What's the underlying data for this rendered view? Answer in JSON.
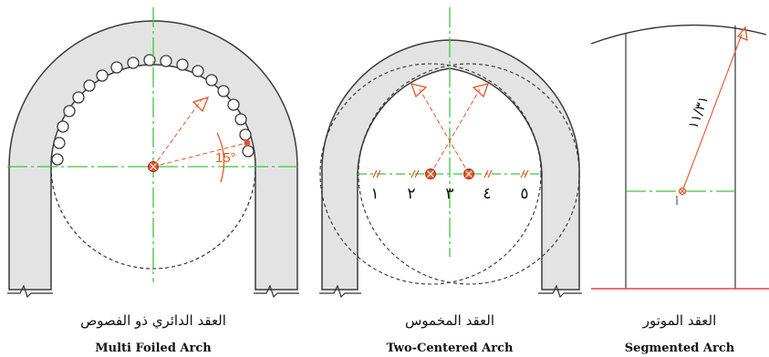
{
  "panels": [
    {
      "name": "multi-foiled",
      "label_ar": "العقد الدائري ذو الفصوص",
      "label_en": "Multi Foiled Arch",
      "angle_label": "15°"
    },
    {
      "name": "two-centered",
      "label_ar": "العقد المخموس",
      "label_en": "Two-Centered Arch",
      "division_numbers": [
        "١",
        "٢",
        "٣",
        "٤",
        "٥"
      ]
    },
    {
      "name": "segmented",
      "label_ar": "العقد الموتور",
      "label_en": "Segmented Arch",
      "radius_label": "١١/٣١",
      "center_label": "أ"
    }
  ],
  "colors": {
    "wall_fill": "#e3e3e3",
    "outline": "#3a3a3a",
    "axis": "#3cc83c",
    "construction": "#e8542a",
    "center_marker": "#e8542a",
    "base_line": "#e64545"
  }
}
